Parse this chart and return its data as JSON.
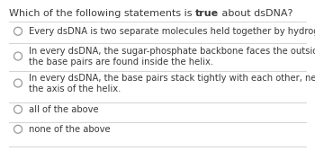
{
  "title_normal": "Which of the following statements is ",
  "title_bold": "true",
  "title_end": " about dsDNA?",
  "background_color": "#ffffff",
  "text_color": "#3a3a3a",
  "divider_color": "#cccccc",
  "circle_color": "#999999",
  "options": [
    {
      "lines": [
        "Every dsDNA is two separate molecules held together by hydrogen bonds."
      ]
    },
    {
      "lines": [
        "In every dsDNA, the sugar-phosphate backbone faces the outside of the helix, and",
        "the base pairs are found inside the helix."
      ]
    },
    {
      "lines": [
        "In every dsDNA, the base pairs stack tightly with each other, nearly perpendicular to",
        "the axis of the helix."
      ]
    },
    {
      "lines": [
        "all of the above"
      ]
    },
    {
      "lines": [
        "none of the above"
      ]
    }
  ],
  "title_fontsize": 8.0,
  "option_fontsize": 7.2,
  "figsize": [
    3.5,
    1.78
  ],
  "dpi": 100
}
